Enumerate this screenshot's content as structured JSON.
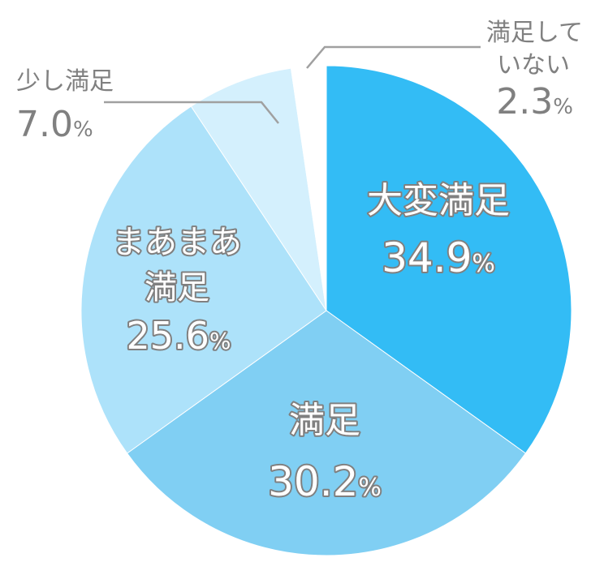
{
  "chart_data": {
    "type": "pie",
    "title": "",
    "start_angle_deg": 0,
    "direction": "clockwise",
    "slices": [
      {
        "name_lines": [
          "大変満足"
        ],
        "value": 34.9,
        "value_text": "34.9",
        "unit": "%",
        "color": "#33bcf5",
        "label_position": "inside"
      },
      {
        "name_lines": [
          "満足"
        ],
        "value": 30.2,
        "value_text": "30.2",
        "unit": "%",
        "color": "#80cff3",
        "label_position": "inside"
      },
      {
        "name_lines": [
          "まあまあ",
          "満足"
        ],
        "value": 25.6,
        "value_text": "25.6",
        "unit": "%",
        "color": "#ade2fa",
        "label_position": "inside"
      },
      {
        "name_lines": [
          "少し満足"
        ],
        "value": 7.0,
        "value_text": "7.0",
        "unit": "%",
        "color": "#d4f0fd",
        "label_position": "outside-left"
      },
      {
        "name_lines": [
          "満足して",
          "いない"
        ],
        "value": 2.3,
        "value_text": "2.3",
        "unit": "%",
        "color": "#ffffff",
        "label_position": "outside-right"
      }
    ]
  }
}
